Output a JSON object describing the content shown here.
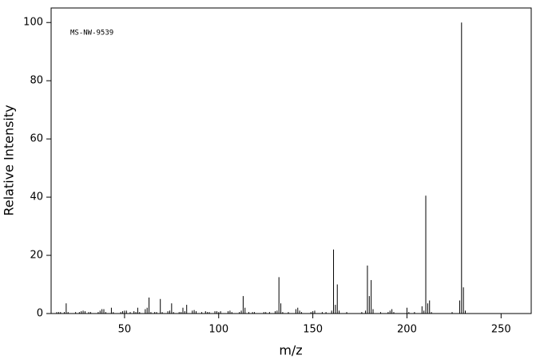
{
  "chart_data": {
    "type": "bar",
    "title": "MS-NW-9539",
    "x_label": "m/z",
    "y_label": "Relative Intensity",
    "xlim": [
      11,
      266
    ],
    "ylim": [
      0,
      105
    ],
    "xticks": [
      50,
      100,
      150,
      200,
      250
    ],
    "yticks": [
      0,
      20,
      40,
      60,
      80,
      100
    ],
    "color": "#000000",
    "x": [
      14,
      15,
      16,
      18,
      19,
      20,
      24,
      26,
      27,
      28,
      29,
      31,
      32,
      36,
      37,
      38,
      39,
      40,
      43,
      44,
      48,
      49,
      50,
      51,
      53,
      55,
      56,
      57,
      58,
      61,
      62,
      63,
      64,
      66,
      67,
      69,
      70,
      73,
      74,
      75,
      76,
      79,
      80,
      81,
      82,
      83,
      86,
      87,
      88,
      91,
      93,
      94,
      95,
      98,
      99,
      100,
      101,
      105,
      106,
      107,
      111,
      112,
      113,
      114,
      116,
      118,
      119,
      124,
      125,
      127,
      130,
      131,
      132,
      133,
      134,
      137,
      141,
      142,
      143,
      144,
      149,
      150,
      151,
      155,
      157,
      160,
      161,
      162,
      163,
      164,
      168,
      176,
      178,
      179,
      180,
      181,
      182,
      186,
      190,
      191,
      192,
      193,
      200,
      201,
      204,
      208,
      209,
      210,
      211,
      212,
      213,
      224,
      228,
      229,
      230,
      231
    ],
    "values": [
      0.5,
      0.5,
      0.5,
      0.5,
      3.5,
      0.5,
      0.5,
      0.5,
      0.8,
      1,
      0.8,
      0.5,
      0.5,
      0.5,
      1,
      1.5,
      1.5,
      0.5,
      2,
      0.5,
      0.5,
      0.8,
      1,
      1,
      0.5,
      0.8,
      0.5,
      2,
      0.5,
      1.5,
      2,
      5.5,
      0.5,
      0.5,
      0.5,
      5,
      0.5,
      0.8,
      1,
      3.5,
      0.5,
      0.5,
      0.5,
      2,
      0.8,
      3,
      1,
      1.2,
      0.8,
      0.5,
      0.8,
      0.5,
      0.5,
      0.8,
      0.8,
      0.5,
      0.8,
      0.8,
      1,
      0.5,
      0.5,
      1,
      6,
      2,
      0.5,
      0.5,
      0.5,
      0.5,
      0.5,
      0.5,
      0.8,
      1,
      12.5,
      3.5,
      0.5,
      0.5,
      1.5,
      2,
      1,
      0.5,
      0.5,
      0.8,
      1,
      0.5,
      0.5,
      1,
      22,
      3,
      10,
      1,
      0.5,
      0.5,
      1,
      16.5,
      6,
      11.5,
      1.5,
      0.5,
      0.5,
      1,
      1.5,
      0.5,
      2,
      0.5,
      0.5,
      2.5,
      1,
      40.5,
      3.5,
      4.5,
      0.5,
      0.5,
      4.5,
      100,
      9,
      1
    ]
  }
}
